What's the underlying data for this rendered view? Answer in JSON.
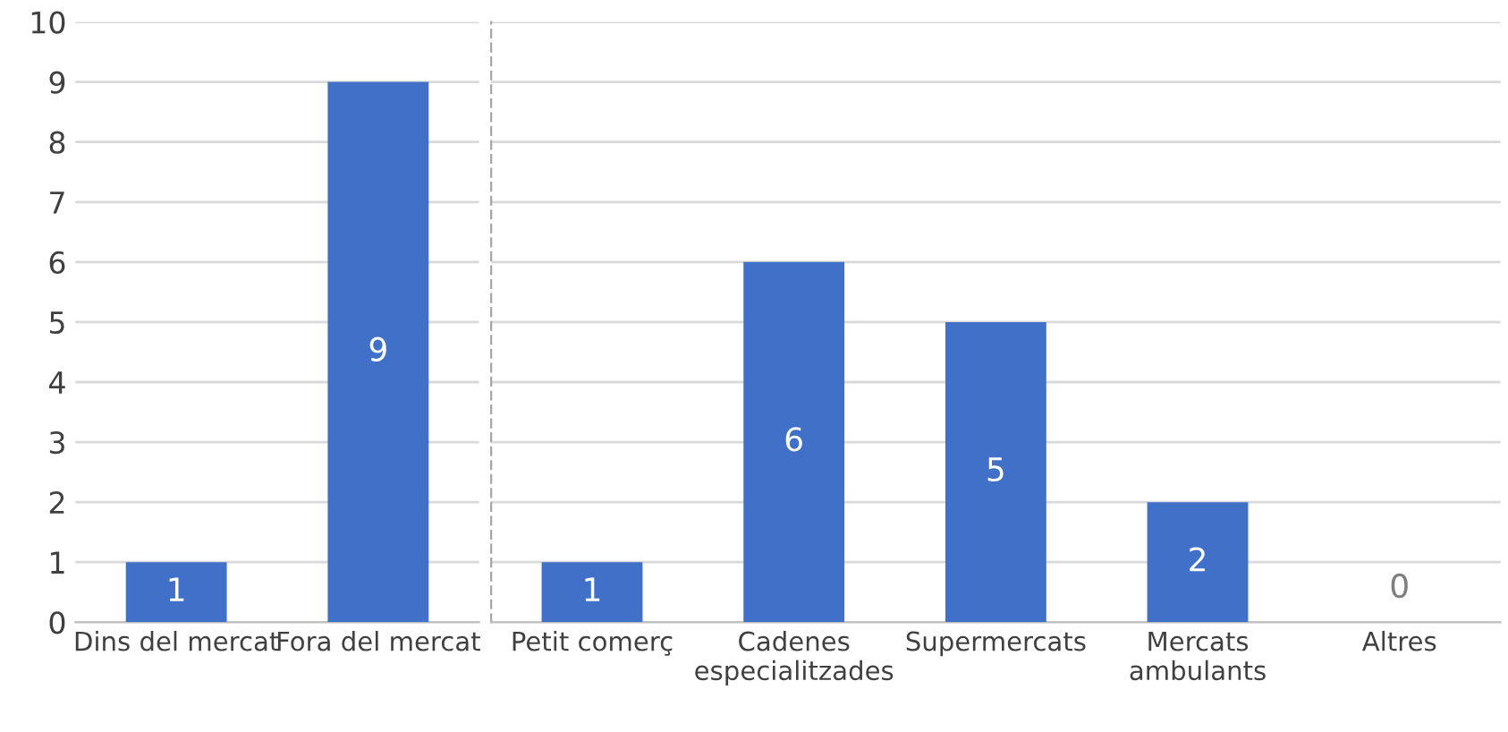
{
  "chart_data": [
    {
      "type": "bar",
      "categories": [
        "Dins del mercat",
        "Fora del mercat"
      ],
      "values": [
        1,
        9
      ],
      "color": "#4170c8",
      "ylim": [
        0,
        10
      ],
      "yticks": [
        0,
        1,
        2,
        3,
        4,
        5,
        6,
        7,
        8,
        9,
        10
      ],
      "grid": "y",
      "data_labels": true
    },
    {
      "type": "bar",
      "categories": [
        "Petit comerç",
        "Cadenes\nespecialitzades",
        "Supermercats",
        "Mercats\nambulants",
        "Altres"
      ],
      "values": [
        1,
        6,
        5,
        2,
        0
      ],
      "color": "#4170c8",
      "ylim": [
        0,
        10
      ],
      "yticks": [
        0,
        1,
        2,
        3,
        4,
        5,
        6,
        7,
        8,
        9,
        10
      ],
      "grid": "y",
      "data_labels": true,
      "tick_labels": "x"
    }
  ]
}
